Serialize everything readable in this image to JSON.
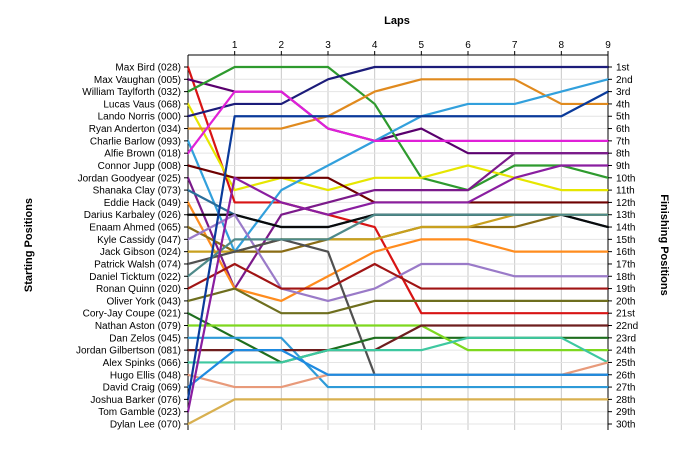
{
  "chart_data": {
    "type": "line",
    "title": "",
    "xlabel": "Laps",
    "ylabel": "Starting Positions",
    "y2label": "Finishing Positions",
    "x": [
      0,
      1,
      2,
      3,
      4,
      5,
      6,
      7,
      8,
      9
    ],
    "x_tick_labels": [
      "1",
      "2",
      "3",
      "4",
      "5",
      "6",
      "7",
      "8",
      "9"
    ],
    "y_reversed": true,
    "ylim": [
      1,
      30
    ],
    "grid": true,
    "finishing_labels": [
      "1st",
      "2nd",
      "3rd",
      "4th",
      "5th",
      "6th",
      "7th",
      "8th",
      "9th",
      "10th",
      "11th",
      "12th",
      "13th",
      "14th",
      "15th",
      "16th",
      "17th",
      "18th",
      "19th",
      "20th",
      "21st",
      "22nd",
      "23rd",
      "24th",
      "25th",
      "26th",
      "27th",
      "28th",
      "29th",
      "30th"
    ],
    "series": [
      {
        "name": "Max Bird (028)",
        "color": "#d81414",
        "values": [
          1,
          12,
          12,
          13,
          14,
          21,
          21,
          21,
          21,
          21
        ]
      },
      {
        "name": "Max Vaughan (005)",
        "color": "#5a006e",
        "values": [
          2,
          3,
          3,
          6,
          7,
          6,
          8,
          8,
          8,
          8
        ]
      },
      {
        "name": "William Taylforth (032)",
        "color": "#2e9a2e",
        "values": [
          3,
          1,
          1,
          1,
          4,
          10,
          11,
          9,
          9,
          10
        ]
      },
      {
        "name": "Lucas Vaus (068)",
        "color": "#e6e600",
        "values": [
          4,
          11,
          10,
          11,
          10,
          10,
          9,
          10,
          11,
          11
        ]
      },
      {
        "name": "Lando Norris (000)",
        "color": "#1c1c7a",
        "values": [
          5,
          4,
          4,
          2,
          1,
          1,
          1,
          1,
          1,
          1
        ]
      },
      {
        "name": "Ryan Anderton (034)",
        "color": "#e08a1e",
        "values": [
          6,
          6,
          6,
          5,
          3,
          2,
          2,
          2,
          4,
          4
        ]
      },
      {
        "name": "Charlie Barlow (093)",
        "color": "#32a0dc",
        "values": [
          7,
          16,
          11,
          9,
          7,
          5,
          4,
          4,
          3,
          2
        ]
      },
      {
        "name": "Alfie Brown (018)",
        "color": "#e020d8",
        "values": [
          8,
          3,
          3,
          6,
          7,
          7,
          7,
          7,
          7,
          7
        ]
      },
      {
        "name": "Connor Jupp (008)",
        "color": "#6e0000",
        "values": [
          9,
          10,
          10,
          10,
          12,
          12,
          12,
          12,
          12,
          12
        ]
      },
      {
        "name": "Jordan Goodyear (025)",
        "color": "#7b1a8a",
        "values": [
          10,
          19,
          13,
          12,
          11,
          11,
          11,
          8,
          8,
          8
        ]
      },
      {
        "name": "Shanaka Clay (073)",
        "color": "#2a6e9a",
        "values": [
          11,
          13,
          14,
          14,
          13,
          13,
          13,
          13,
          13,
          14
        ]
      },
      {
        "name": "Eddie Hack (049)",
        "color": "#ff8c1e",
        "values": [
          12,
          19,
          20,
          18,
          16,
          15,
          15,
          16,
          16,
          16
        ]
      },
      {
        "name": "Darius Karbaley (026)",
        "color": "#0a0a0a",
        "values": [
          13,
          13,
          14,
          14,
          13,
          13,
          13,
          13,
          13,
          14
        ]
      },
      {
        "name": "Enaam Ahmed (065)",
        "color": "#8a6c14",
        "values": [
          14,
          16,
          16,
          15,
          15,
          14,
          14,
          14,
          13,
          13
        ]
      },
      {
        "name": "Kyle Cassidy (047)",
        "color": "#9a7ac8",
        "values": [
          15,
          13,
          19,
          20,
          19,
          17,
          17,
          18,
          18,
          18
        ]
      },
      {
        "name": "Jack Gibson (024)",
        "color": "#c8a01e",
        "values": [
          16,
          16,
          15,
          15,
          15,
          14,
          14,
          13,
          13,
          13
        ]
      },
      {
        "name": "Patrick Walsh (074)",
        "color": "#505050",
        "values": [
          17,
          16,
          15,
          16,
          26,
          26,
          26,
          26,
          26,
          26
        ]
      },
      {
        "name": "Daniel Ticktum (022)",
        "color": "#4e8a8a",
        "values": [
          18,
          15,
          15,
          15,
          13,
          13,
          13,
          13,
          13,
          13
        ]
      },
      {
        "name": "Ronan Quinn (020)",
        "color": "#a01414",
        "values": [
          19,
          17,
          19,
          19,
          17,
          19,
          19,
          19,
          19,
          19
        ]
      },
      {
        "name": "Oliver York (043)",
        "color": "#6e6e1e",
        "values": [
          20,
          19,
          21,
          21,
          20,
          20,
          20,
          20,
          20,
          20
        ]
      },
      {
        "name": "Cory-Jay Coupe (021)",
        "color": "#1e6e1e",
        "values": [
          21,
          23,
          25,
          24,
          23,
          23,
          23,
          23,
          23,
          23
        ]
      },
      {
        "name": "Nathan Aston (079)",
        "color": "#7ed81e",
        "values": [
          22,
          22,
          22,
          22,
          22,
          22,
          24,
          24,
          24,
          24
        ]
      },
      {
        "name": "Dan Zelos (045)",
        "color": "#2e9ad8",
        "values": [
          23,
          23,
          23,
          27,
          27,
          27,
          27,
          27,
          27,
          27
        ]
      },
      {
        "name": "Jordan Gilbertson (081)",
        "color": "#6e1e1e",
        "values": [
          24,
          24,
          24,
          24,
          24,
          22,
          22,
          22,
          22,
          22
        ]
      },
      {
        "name": "Alex Spinks (066)",
        "color": "#3ec8a0",
        "values": [
          25,
          25,
          25,
          24,
          24,
          24,
          23,
          23,
          23,
          25
        ]
      },
      {
        "name": "Hugo Ellis (048)",
        "color": "#e89a7a",
        "values": [
          26,
          27,
          27,
          26,
          26,
          26,
          26,
          26,
          26,
          25
        ]
      },
      {
        "name": "David Craig (069)",
        "color": "#1e8ae0",
        "values": [
          27,
          24,
          24,
          26,
          26,
          26,
          26,
          26,
          26,
          26
        ]
      },
      {
        "name": "Joshua Barker (076)",
        "color": "#0a3a9a",
        "values": [
          28,
          5,
          5,
          5,
          5,
          5,
          5,
          5,
          5,
          3
        ]
      },
      {
        "name": "Tom Gamble (023)",
        "color": "#8a1ea0",
        "values": [
          29,
          10,
          12,
          13,
          12,
          12,
          12,
          10,
          9,
          9
        ]
      },
      {
        "name": "Dylan Lee (070)",
        "color": "#d8b050",
        "values": [
          30,
          28,
          28,
          28,
          28,
          28,
          28,
          28,
          28,
          28
        ]
      }
    ]
  }
}
